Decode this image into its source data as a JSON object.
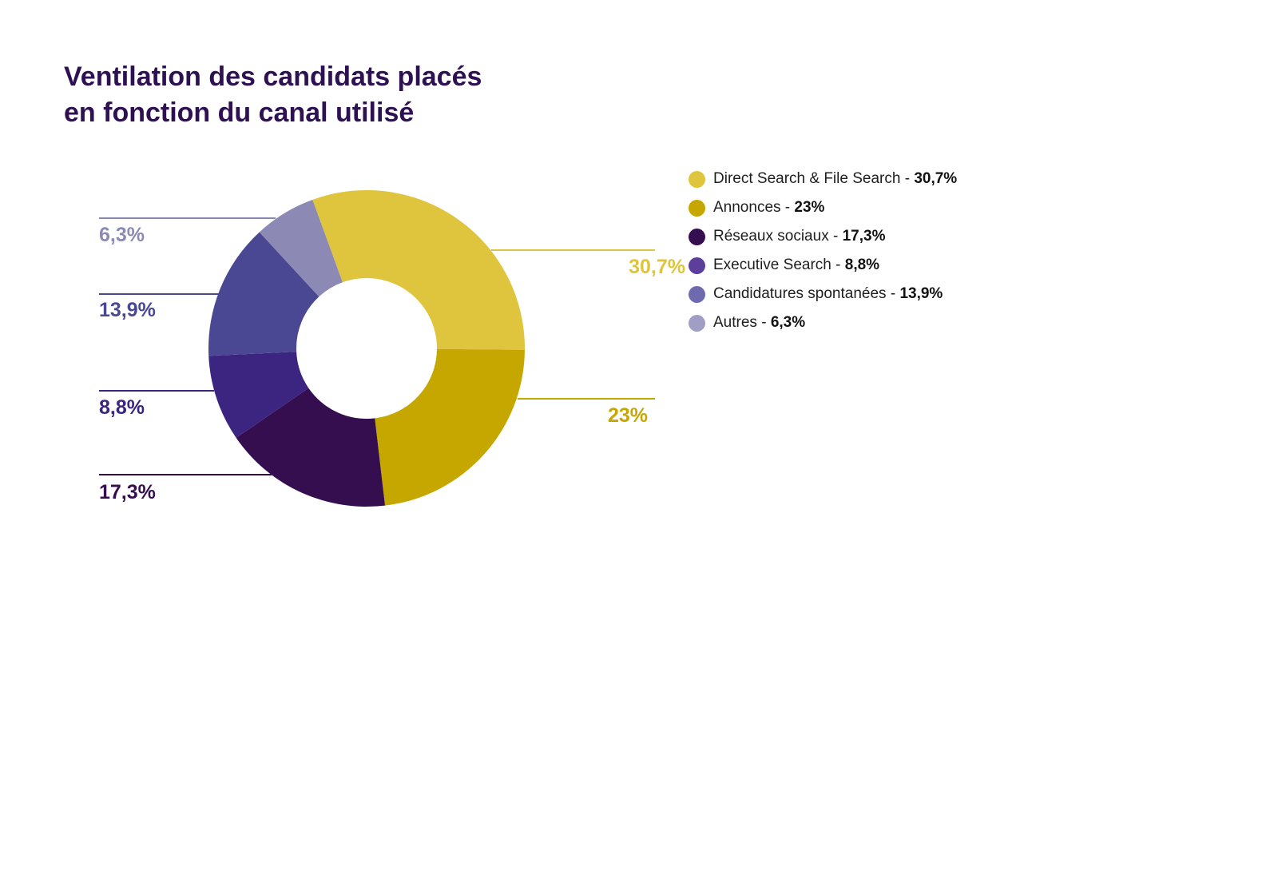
{
  "title_lines": [
    "Ventilation des candidats placés",
    "en fonction du canal utilisé"
  ],
  "chart_data": {
    "type": "pie",
    "variant": "donut",
    "legend_position": "right",
    "categories": [
      "Direct Search & File Search",
      "Annonces",
      "Réseaux sociaux",
      "Executive Search",
      "Candidatures spontanées",
      "Autres"
    ],
    "values": [
      30.7,
      23,
      17.3,
      8.8,
      13.9,
      6.3
    ],
    "labels": [
      "30,7%",
      "23%",
      "17,3%",
      "8,8%",
      "13,9%",
      "6,3%"
    ],
    "colors": [
      "#dec53d",
      "#c5a700",
      "#350e50",
      "#3c2481",
      "#4b4893",
      "#8c89b4"
    ],
    "legend_colors": [
      "#dec53d",
      "#c5a700",
      "#350e50",
      "#5b3f9a",
      "#6e6aae",
      "#a19ec6"
    ],
    "label_colors": [
      "#dec53d",
      "#c5a700",
      "#350e50",
      "#3c2481",
      "#4b4893",
      "#8c89b4"
    ]
  }
}
